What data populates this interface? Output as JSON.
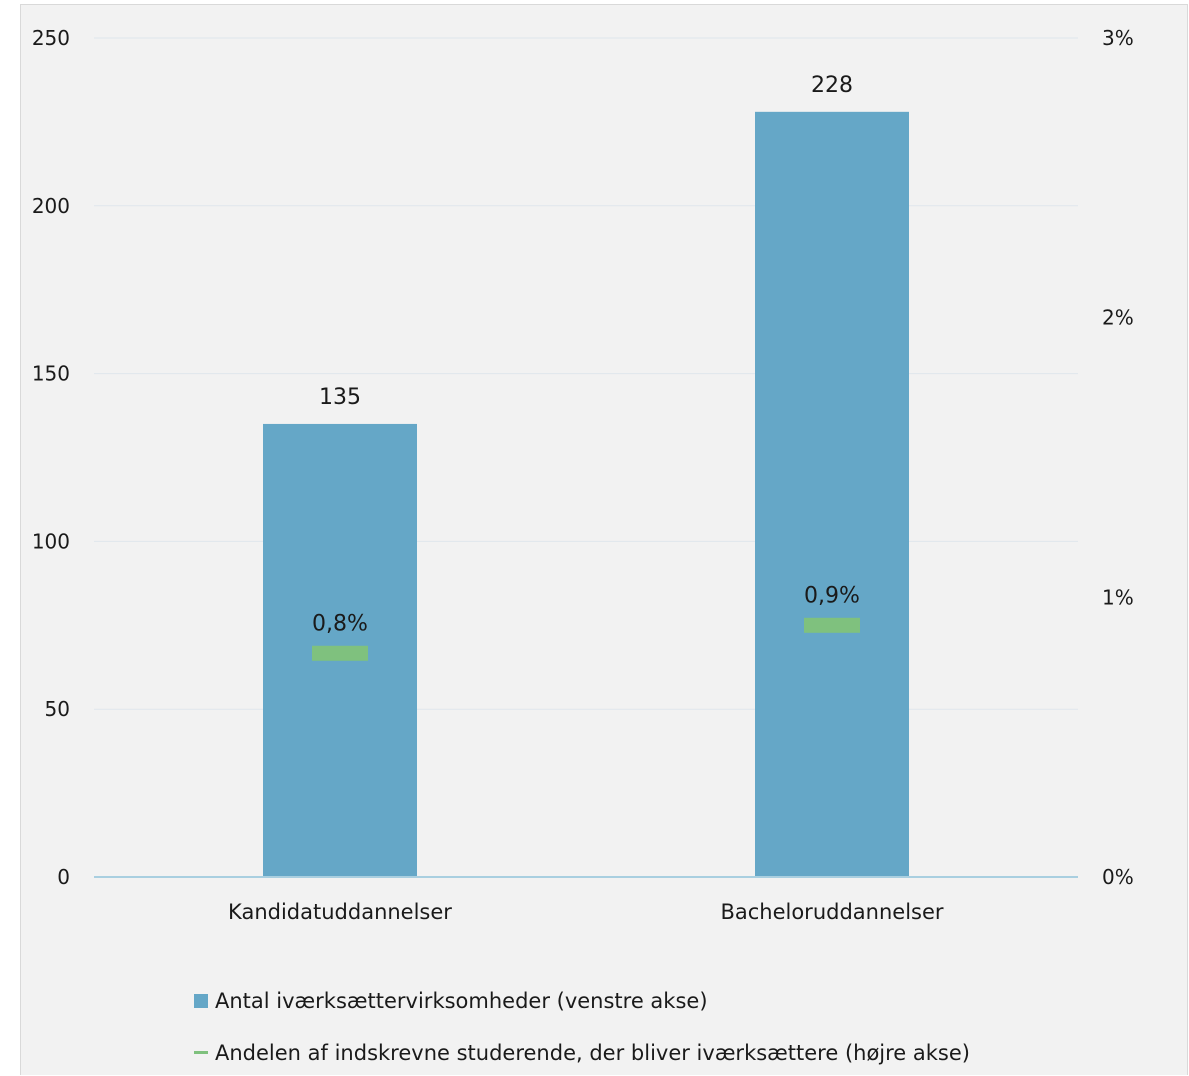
{
  "chart_data": {
    "type": "bar",
    "categories": [
      "Kandidatuddannelser",
      "Bacheloruddannelser"
    ],
    "series": [
      {
        "name": "Antal iværksættervirksomheder (venstre akse)",
        "type": "bar",
        "axis": "left",
        "values": [
          135,
          228
        ],
        "value_labels": [
          "135",
          "228"
        ],
        "color": "#65a7c7"
      },
      {
        "name": "Andelen af indskrevne studerende, der bliver iværksættere (højre akse)",
        "type": "marker",
        "axis": "right",
        "values": [
          0.8,
          0.9
        ],
        "value_labels": [
          "0,8%",
          "0,9%"
        ],
        "color": "#7fc17e"
      }
    ],
    "y_left": {
      "min": 0,
      "max": 250,
      "ticks": [
        0,
        50,
        100,
        150,
        200,
        250
      ],
      "tick_labels": [
        "0",
        "50",
        "100",
        "150",
        "200",
        "250"
      ]
    },
    "y_right": {
      "min": 0,
      "max": 3,
      "ticks": [
        0,
        1,
        2,
        3
      ],
      "tick_labels": [
        "0%",
        "1%",
        "2%",
        "3%"
      ]
    },
    "grid": true,
    "legend_position": "bottom",
    "colors": {
      "background": "#f2f2f2",
      "grid": "#dfe6ec",
      "axis": "#a9cfe0"
    }
  }
}
